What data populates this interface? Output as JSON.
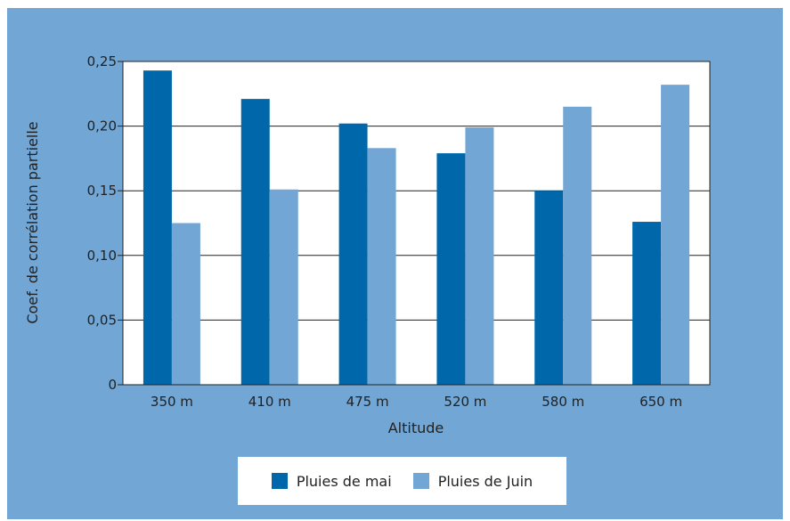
{
  "chart_data": {
    "type": "bar",
    "categories": [
      "350 m",
      "410 m",
      "475 m",
      "520 m",
      "580 m",
      "650 m"
    ],
    "series": [
      {
        "name": "Pluies de mai",
        "color": "#0068aa",
        "values": [
          0.243,
          0.221,
          0.202,
          0.179,
          0.15,
          0.126
        ]
      },
      {
        "name": "Pluies de Juin",
        "color": "#72a6d4",
        "values": [
          0.125,
          0.151,
          0.183,
          0.199,
          0.215,
          0.232
        ]
      }
    ],
    "xlabel": "Altitude",
    "ylabel": "Coef. de corrélation partielle",
    "ylim": [
      0,
      0.25
    ],
    "yticks": [
      {
        "value": 0,
        "label": "0"
      },
      {
        "value": 0.05,
        "label": "0,05"
      },
      {
        "value": 0.1,
        "label": "0,10"
      },
      {
        "value": 0.15,
        "label": "0,15"
      },
      {
        "value": 0.2,
        "label": "0,20"
      },
      {
        "value": 0.25,
        "label": "0,25"
      }
    ],
    "grid": true,
    "legend_position": "bottom",
    "background_color": "#72a6d4",
    "plot_background": "#ffffff"
  }
}
